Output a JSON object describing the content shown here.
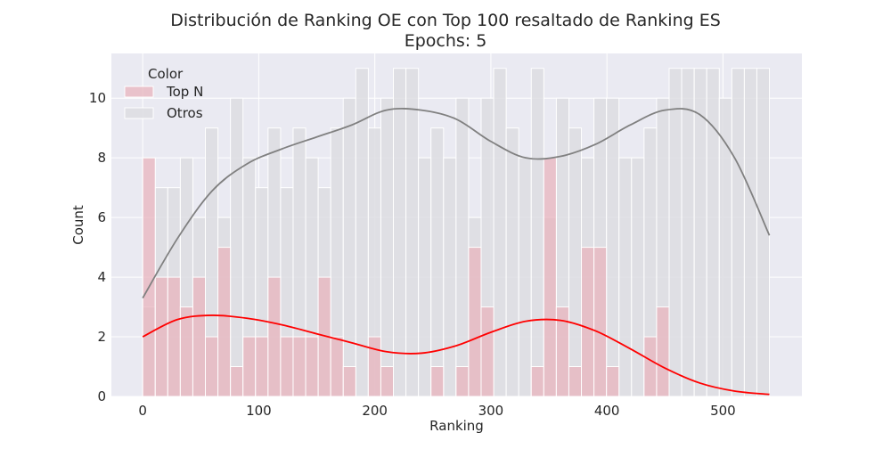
{
  "chart_data": {
    "type": "histogram",
    "title": "Distribución de Ranking OE con Top 100 resaltado de Ranking ES",
    "subtitle": "Epochs: 5",
    "xlabel": "Ranking",
    "ylabel": "Count",
    "xlim": [
      -27,
      568
    ],
    "ylim": [
      0,
      11.5
    ],
    "xticks": [
      0,
      100,
      200,
      300,
      400,
      500
    ],
    "yticks": [
      0,
      2,
      4,
      6,
      8,
      10
    ],
    "grid": true,
    "background": "#EAEAF2",
    "legend": {
      "title": "Color",
      "placement": "top-left",
      "entries": [
        "Top N",
        "Otros"
      ]
    },
    "bins": {
      "start": 0,
      "width": 10.8,
      "count": 50
    },
    "series": [
      {
        "name": "Top N",
        "color": "#E8B4BE",
        "kde_color": "#FF0000",
        "values": [
          8,
          4,
          4,
          3,
          4,
          2,
          5,
          1,
          2,
          2,
          4,
          2,
          2,
          2,
          4,
          2,
          1,
          0,
          2,
          1,
          0,
          0,
          0,
          1,
          0,
          1,
          5,
          3,
          0,
          0,
          0,
          1,
          8,
          3,
          1,
          5,
          5,
          1,
          0,
          0,
          2,
          3,
          0,
          0,
          0,
          0,
          0,
          0,
          0,
          0
        ],
        "kde_x": [
          0,
          30,
          60,
          90,
          120,
          150,
          180,
          210,
          240,
          270,
          300,
          330,
          360,
          390,
          420,
          450,
          480,
          510,
          540
        ],
        "kde_y": [
          2.0,
          2.58,
          2.72,
          2.62,
          2.4,
          2.1,
          1.8,
          1.5,
          1.45,
          1.7,
          2.15,
          2.52,
          2.55,
          2.2,
          1.6,
          0.95,
          0.45,
          0.18,
          0.07
        ]
      },
      {
        "name": "Otros",
        "color": "#DDDDE2",
        "kde_color": "#808080",
        "values": [
          3,
          7,
          7,
          8,
          6,
          9,
          6,
          10,
          8,
          7,
          9,
          7,
          9,
          8,
          7,
          9,
          10,
          11,
          9,
          10,
          11,
          11,
          8,
          9,
          8,
          10,
          6,
          10,
          11,
          9,
          8,
          11,
          6,
          10,
          9,
          8,
          10,
          10,
          8,
          8,
          9,
          10,
          11,
          11,
          11,
          11,
          10,
          11,
          11,
          11
        ],
        "kde_x": [
          0,
          30,
          60,
          90,
          120,
          150,
          180,
          210,
          240,
          270,
          300,
          330,
          360,
          390,
          420,
          450,
          480,
          510,
          540
        ],
        "kde_y": [
          3.3,
          5.3,
          6.9,
          7.8,
          8.3,
          8.7,
          9.1,
          9.6,
          9.6,
          9.3,
          8.55,
          8.0,
          8.05,
          8.45,
          9.1,
          9.6,
          9.45,
          8.0,
          5.4
        ]
      }
    ]
  }
}
